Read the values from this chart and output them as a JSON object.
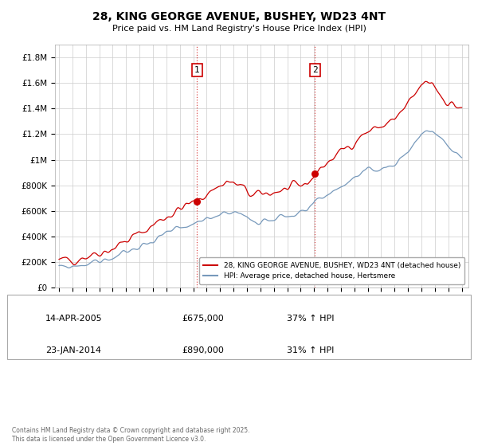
{
  "title": "28, KING GEORGE AVENUE, BUSHEY, WD23 4NT",
  "subtitle": "Price paid vs. HM Land Registry's House Price Index (HPI)",
  "line1_label": "28, KING GEORGE AVENUE, BUSHEY, WD23 4NT (detached house)",
  "line2_label": "HPI: Average price, detached house, Hertsmere",
  "line1_color": "#cc0000",
  "line2_color": "#7799bb",
  "background_color": "#ffffff",
  "grid_color": "#cccccc",
  "ylim": [
    0,
    1900000
  ],
  "xlim_start": 1994.7,
  "xlim_end": 2025.5,
  "sale1_year": 2005.286,
  "sale1_price": 675000,
  "sale1_label": "1",
  "sale1_hpi_pct": "37% ↑ HPI",
  "sale1_date": "14-APR-2005",
  "sale2_year": 2014.07,
  "sale2_price": 890000,
  "sale2_label": "2",
  "sale2_hpi_pct": "31% ↑ HPI",
  "sale2_date": "23-JAN-2014",
  "footnote": "Contains HM Land Registry data © Crown copyright and database right 2025.\nThis data is licensed under the Open Government Licence v3.0.",
  "yticks": [
    0,
    200000,
    400000,
    600000,
    800000,
    1000000,
    1200000,
    1400000,
    1600000,
    1800000
  ],
  "ytick_labels": [
    "£0",
    "£200K",
    "£400K",
    "£600K",
    "£800K",
    "£1M",
    "£1.2M",
    "£1.4M",
    "£1.6M",
    "£1.8M"
  ]
}
